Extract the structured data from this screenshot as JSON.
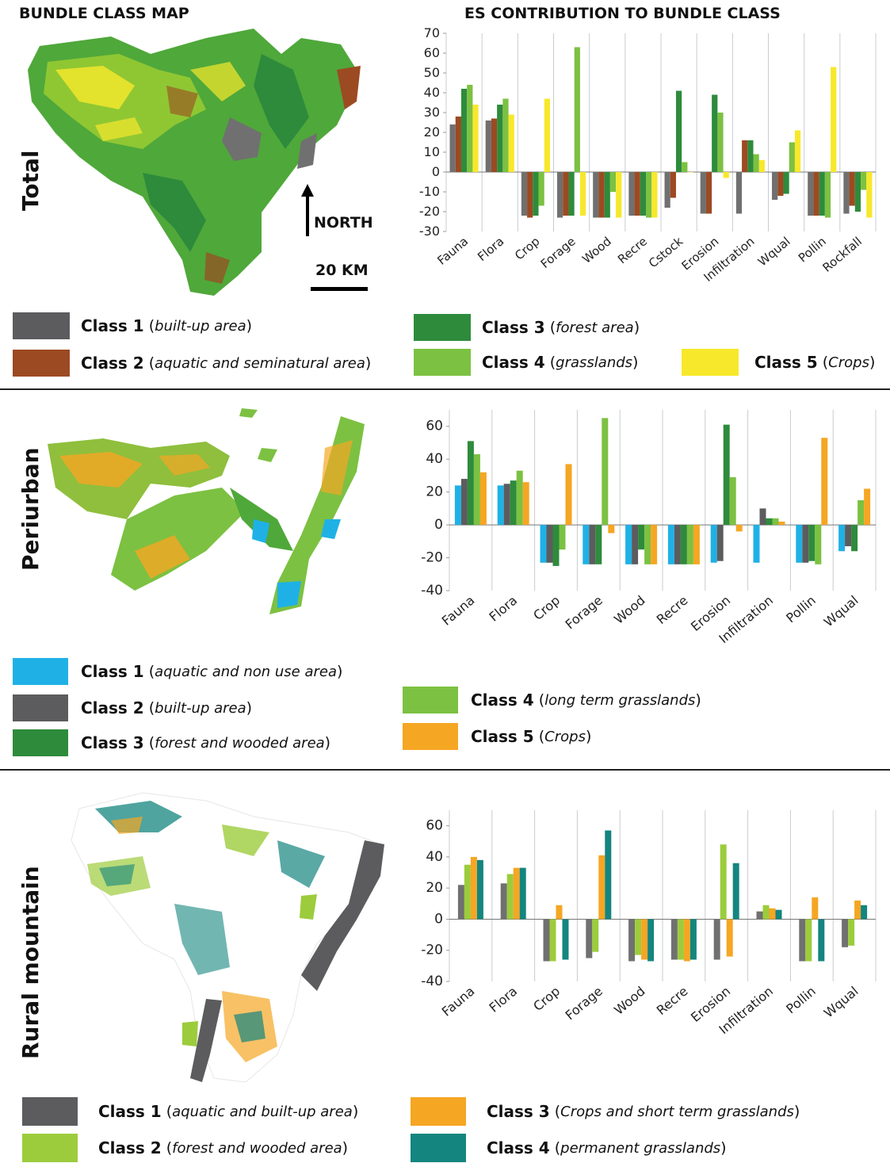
{
  "headers": {
    "map_title": "BUNDLE CLASS MAP",
    "chart_title": "ES CONTRIBUTION TO BUNDLE CLASS"
  },
  "rows": [
    {
      "label": "Total",
      "legend": [
        {
          "name": "Class 1",
          "desc": "built-up area",
          "color": "#5c5c5e"
        },
        {
          "name": "Class 2",
          "desc": "aquatic and seminatural area",
          "color": "#9c4a22"
        },
        {
          "name": "Class 3",
          "desc": "forest area",
          "color": "#2e8b3c"
        },
        {
          "name": "Class 4",
          "desc": "grasslands",
          "color": "#7cc142"
        },
        {
          "name": "Class 5",
          "desc": "Crops",
          "color": "#f7e82c"
        }
      ]
    },
    {
      "label": "Periurban",
      "legend": [
        {
          "name": "Class 1",
          "desc": "aquatic and non use area",
          "color": "#1fb1e6"
        },
        {
          "name": "Class 2",
          "desc": "built-up area",
          "color": "#5c5c5e"
        },
        {
          "name": "Class 3",
          "desc": "forest and wooded area",
          "color": "#2e8b3c"
        },
        {
          "name": "Class 4",
          "desc": "long term grasslands",
          "color": "#7cc142"
        },
        {
          "name": "Class 5",
          "desc": "Crops",
          "color": "#f5a623"
        }
      ]
    },
    {
      "label": "Rural mountain",
      "legend": [
        {
          "name": "Class 1",
          "desc": "aquatic and built-up area",
          "color": "#5c5c5e"
        },
        {
          "name": "Class 2",
          "desc": "forest and wooded area",
          "color": "#9ccc3c"
        },
        {
          "name": "Class 3",
          "desc": "Crops and short term grasslands",
          "color": "#f5a623"
        },
        {
          "name": "Class 4",
          "desc": "permanent grasslands",
          "color": "#14857f"
        }
      ]
    }
  ],
  "map_annotations": {
    "north": "NORTH",
    "scale": "20 KM"
  },
  "chart_data": [
    {
      "type": "bar",
      "categories": [
        "Fauna",
        "Flora",
        "Crop",
        "Forage",
        "Wood",
        "Recre",
        "Cstock",
        "Erosion",
        "Infiltration",
        "Wqual",
        "Pollin",
        "Rockfall"
      ],
      "ylim": [
        -30,
        70
      ],
      "yticks": [
        -30,
        -20,
        -10,
        0,
        10,
        20,
        30,
        40,
        50,
        60,
        70
      ],
      "series": [
        {
          "name": "Class 1",
          "color": "#707070",
          "values": [
            24,
            26,
            -22,
            -23,
            -23,
            -22,
            -18,
            -21,
            -21,
            -14,
            -22,
            -21
          ]
        },
        {
          "name": "Class 2",
          "color": "#9c4a22",
          "values": [
            28,
            27,
            -23,
            -22,
            -23,
            -22,
            -13,
            -21,
            16,
            -12,
            -22,
            -17
          ]
        },
        {
          "name": "Class 3",
          "color": "#2e8b3c",
          "values": [
            42,
            34,
            -22,
            -22,
            -23,
            -22,
            41,
            39,
            16,
            -11,
            -22,
            -20
          ]
        },
        {
          "name": "Class 4",
          "color": "#7cc142",
          "values": [
            44,
            37,
            -17,
            63,
            -10,
            -23,
            5,
            30,
            9,
            15,
            -23,
            -9
          ]
        },
        {
          "name": "Class 5",
          "color": "#f7e82c",
          "values": [
            34,
            29,
            37,
            -22,
            -23,
            -23,
            0,
            -3,
            6,
            21,
            53,
            -23
          ]
        }
      ]
    },
    {
      "type": "bar",
      "categories": [
        "Fauna",
        "Flora",
        "Crop",
        "Forage",
        "Wood",
        "Recre",
        "Erosion",
        "Infiltration",
        "Pollin",
        "Wqual"
      ],
      "ylim": [
        -40,
        70
      ],
      "yticks": [
        -40,
        -20,
        0,
        20,
        40,
        60
      ],
      "series": [
        {
          "name": "Class 1",
          "color": "#1fb1e6",
          "values": [
            24,
            24,
            -23,
            -24,
            -24,
            -24,
            -23,
            -23,
            -23,
            -16
          ]
        },
        {
          "name": "Class 2",
          "color": "#5c5c5e",
          "values": [
            28,
            25,
            -23,
            -24,
            -24,
            -24,
            -22,
            10,
            -23,
            -13
          ]
        },
        {
          "name": "Class 3",
          "color": "#2e8b3c",
          "values": [
            51,
            27,
            -25,
            -24,
            -15,
            -24,
            61,
            4,
            -22,
            -16
          ]
        },
        {
          "name": "Class 4",
          "color": "#7cc142",
          "values": [
            43,
            33,
            -15,
            65,
            -24,
            -24,
            29,
            4,
            -24,
            15
          ]
        },
        {
          "name": "Class 5",
          "color": "#f5a623",
          "values": [
            32,
            26,
            37,
            -5,
            -24,
            -24,
            -4,
            2,
            53,
            22
          ]
        }
      ]
    },
    {
      "type": "bar",
      "categories": [
        "Fauna",
        "Flora",
        "Crop",
        "Forage",
        "Wood",
        "Recre",
        "Erosion",
        "Infiltration",
        "Pollin",
        "Wqual"
      ],
      "ylim": [
        -40,
        70
      ],
      "yticks": [
        -40,
        -20,
        0,
        20,
        40,
        60
      ],
      "series": [
        {
          "name": "Class 1",
          "color": "#707070",
          "values": [
            22,
            23,
            -27,
            -25,
            -27,
            -26,
            -26,
            5,
            -27,
            -18
          ]
        },
        {
          "name": "Class 2",
          "color": "#9ccc3c",
          "values": [
            35,
            29,
            -27,
            -21,
            -23,
            -26,
            48,
            9,
            -27,
            -17
          ]
        },
        {
          "name": "Class 3",
          "color": "#f5a623",
          "values": [
            40,
            33,
            9,
            41,
            -26,
            -27,
            -24,
            7,
            14,
            12
          ]
        },
        {
          "name": "Class 4",
          "color": "#14857f",
          "values": [
            38,
            33,
            -26,
            57,
            -27,
            -26,
            36,
            6,
            -27,
            9
          ]
        }
      ]
    }
  ]
}
